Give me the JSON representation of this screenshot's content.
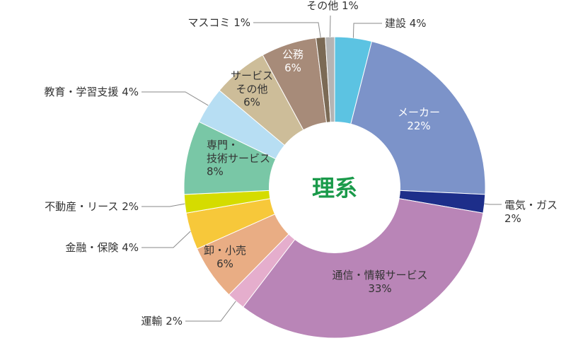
{
  "chart_data": {
    "type": "pie",
    "title": "",
    "center_label": "理系",
    "center_color": "#1a9a4a",
    "slices": [
      {
        "label": "建設",
        "value": 4,
        "value_text": "4%",
        "color": "#5cc3e2"
      },
      {
        "label": "メーカー",
        "value": 22,
        "value_text": "22%",
        "color": "#7c93c9"
      },
      {
        "label": "電気・ガス",
        "value": 2,
        "value_text": "2%",
        "color": "#1d2e8a"
      },
      {
        "label": "通信・情報サービス",
        "value": 33,
        "value_text": "33%",
        "color": "#b985b7"
      },
      {
        "label": "運輸",
        "value": 2,
        "value_text": "2%",
        "color": "#e5aecd"
      },
      {
        "label": "卸・小売",
        "value": 6,
        "value_text": "6%",
        "color": "#e9ad84"
      },
      {
        "label": "金融・保険",
        "value": 4,
        "value_text": "4%",
        "color": "#f7c83a"
      },
      {
        "label": "不動産・リース",
        "value": 2,
        "value_text": "2%",
        "color": "#d5dc00"
      },
      {
        "label": "専門・技術サービス",
        "value": 8,
        "value_text": "8%",
        "color": "#79c7a6"
      },
      {
        "label": "教育・学習支援",
        "value": 4,
        "value_text": "4%",
        "color": "#b7def3"
      },
      {
        "label": "サービスその他",
        "value": 6,
        "value_text": "6%",
        "color": "#cdbd99"
      },
      {
        "label": "公務",
        "value": 6,
        "value_text": "6%",
        "color": "#a78b79"
      },
      {
        "label": "マスコミ",
        "value": 1,
        "value_text": "1%",
        "color": "#7b6a55"
      },
      {
        "label": "その他",
        "value": 1,
        "value_text": "1%",
        "color": "#b4b4b4"
      }
    ]
  }
}
